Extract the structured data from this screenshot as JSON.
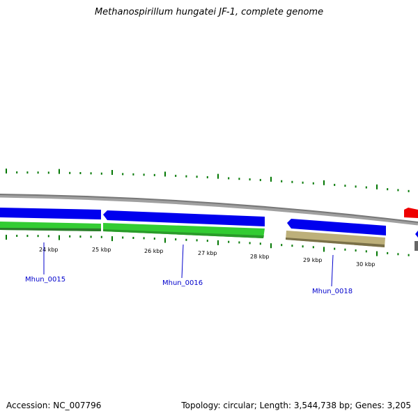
{
  "title": "Methanospirillum hungatei JF-1, complete genome",
  "footer": {
    "accession": "Accession: NC_007796",
    "stats": "Topology: circular; Length: 3,544,738 bp; Genes: 3,205"
  },
  "scale": {
    "unit": "kbp",
    "labels": [
      "24 kbp",
      "25 kbp",
      "26 kbp",
      "27 kbp",
      "28 kbp",
      "29 kbp",
      "30 kbp"
    ]
  },
  "gene_labels": [
    "Mhun_0015",
    "Mhun_0016",
    "Mhun_0018"
  ],
  "colors": {
    "backbone": "#808080",
    "forward_cds": "#0000ee",
    "forward_gene": "#33cc33",
    "pseudo_gene": "#bdb07a",
    "reverse_feature": "#ee0000",
    "ticks": "#007700",
    "gene_label": "#0000cc"
  }
}
